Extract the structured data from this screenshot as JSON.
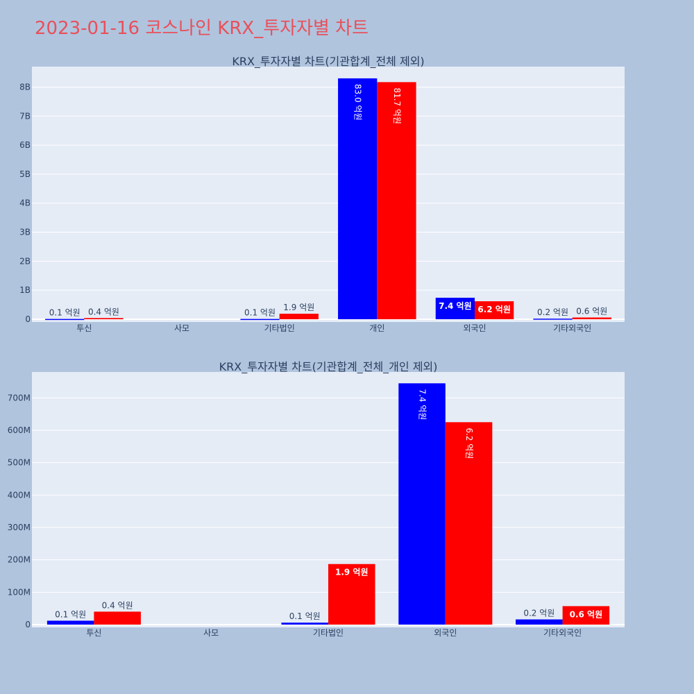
{
  "title": "2023-01-16 코스나인 KRX_투자자별 차트",
  "colors": {
    "page_bg": "#b0c4de",
    "plot_bg": "#e5ecf6",
    "series_a": "#0000ff",
    "series_b": "#ff0000",
    "title": "#e8505b",
    "text": "#2a3f5f"
  },
  "chart_data": [
    {
      "type": "bar",
      "title": "KRX_투자자별 차트(기관합계_전체 제외)",
      "categories": [
        "투신",
        "사모",
        "기타법인",
        "개인",
        "외국인",
        "기타외국인"
      ],
      "ylim": [
        0,
        8800000000
      ],
      "yticks": [
        0,
        1000000000,
        2000000000,
        3000000000,
        4000000000,
        5000000000,
        6000000000,
        7000000000,
        8000000000
      ],
      "ytick_labels": [
        "0",
        "1B",
        "2B",
        "3B",
        "4B",
        "5B",
        "6B",
        "7B",
        "8B"
      ],
      "grid": true,
      "series": [
        {
          "values": [
            10000000,
            0,
            10000000,
            8300000000,
            740000000,
            20000000
          ],
          "labels": [
            "0.1 억원",
            "",
            "0.1 억원",
            "83.0 억원",
            "7.4 억원",
            "0.2 억원"
          ]
        },
        {
          "values": [
            40000000,
            0,
            190000000,
            8170000000,
            620000000,
            60000000
          ],
          "labels": [
            "0.4 억원",
            "",
            "1.9 억원",
            "81.7 억원",
            "6.2 억원",
            "0.6 억원"
          ]
        }
      ]
    },
    {
      "type": "bar",
      "title": "KRX_투자자별 차트(기관합계_전체_개인 제외)",
      "categories": [
        "투신",
        "사모",
        "기타법인",
        "외국인",
        "기타외국인"
      ],
      "ylim": [
        0,
        780000000
      ],
      "yticks": [
        0,
        100000000,
        200000000,
        300000000,
        400000000,
        500000000,
        600000000,
        700000000
      ],
      "ytick_labels": [
        "0",
        "100M",
        "200M",
        "300M",
        "400M",
        "500M",
        "600M",
        "700M"
      ],
      "grid": true,
      "series": [
        {
          "values": [
            12000000,
            0,
            6000000,
            745000000,
            16000000
          ],
          "labels": [
            "0.1 억원",
            "",
            "0.1 억원",
            "7.4 억원",
            "0.2 억원"
          ]
        },
        {
          "values": [
            40000000,
            0,
            187000000,
            625000000,
            57000000
          ],
          "labels": [
            "0.4 억원",
            "",
            "1.9 억원",
            "6.2 억원",
            "0.6 억원"
          ]
        }
      ]
    }
  ]
}
